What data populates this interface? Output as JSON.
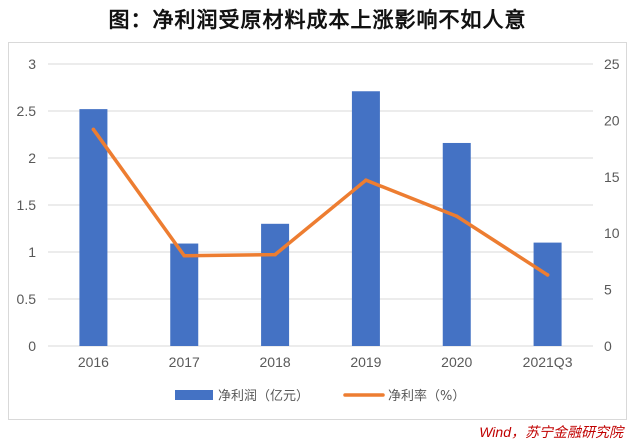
{
  "page": {
    "title": "图：净利润受原材料成本上涨影响不如人意",
    "source": "Wind，苏宁金融研究院"
  },
  "chart_data": {
    "type": "bar+line",
    "categories": [
      "2016",
      "2017",
      "2018",
      "2019",
      "2020",
      "2021Q3"
    ],
    "series": [
      {
        "name": "净利润（亿元）",
        "type": "bar",
        "axis": "left",
        "color": "#4472c4",
        "values": [
          2.52,
          1.09,
          1.3,
          2.71,
          2.16,
          1.1
        ]
      },
      {
        "name": "净利率（%）",
        "type": "line",
        "axis": "right",
        "color": "#ed7d31",
        "values": [
          19.2,
          8.0,
          8.1,
          14.7,
          11.5,
          6.3
        ]
      }
    ],
    "y_left": {
      "range": [
        0,
        3
      ],
      "ticks": [
        "0",
        "0.5",
        "1",
        "1.5",
        "2",
        "2.5",
        "3"
      ]
    },
    "y_right": {
      "range": [
        0,
        25
      ],
      "ticks": [
        "0",
        "5",
        "10",
        "15",
        "20",
        "25"
      ]
    },
    "grid": true,
    "legend": "bottom"
  }
}
